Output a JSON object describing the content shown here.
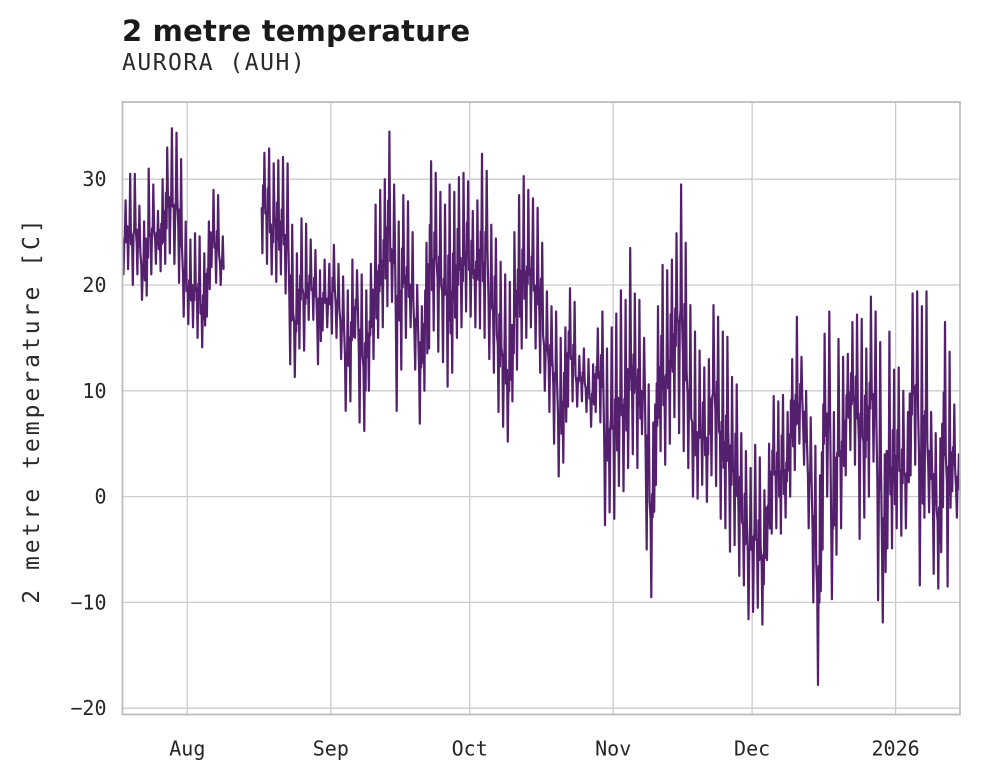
{
  "header": {
    "title": "2 metre temperature",
    "subtitle": "AURORA (AUH)"
  },
  "chart_data": {
    "type": "line",
    "title": "2 metre temperature",
    "subtitle": "AURORA (AUH)",
    "xlabel": "",
    "ylabel": "2 metre temperature [C]",
    "grid": true,
    "legend": "none",
    "ylim": [
      -20.6,
      37.3
    ],
    "xlim_days": [
      0,
      180.9
    ],
    "y_ticks": [
      {
        "label": "30",
        "value": 30
      },
      {
        "label": "20",
        "value": 20
      },
      {
        "label": "10",
        "value": 10
      },
      {
        "label": "0",
        "value": 0
      },
      {
        "label": "−10",
        "value": -10
      },
      {
        "label": "−20",
        "value": -20
      }
    ],
    "x_ticks": [
      {
        "label": "Aug",
        "day": 14
      },
      {
        "label": "Sep",
        "day": 45
      },
      {
        "label": "Oct",
        "day": 75
      },
      {
        "label": "Nov",
        "day": 106
      },
      {
        "label": "Dec",
        "day": 136
      },
      {
        "label": "2026",
        "day": 167
      }
    ],
    "colors": {
      "line": "#54206e",
      "grid": "#cccccc",
      "spine": "#bdbdbd",
      "background": "#ffffff",
      "text": "#262626",
      "title_text": "#1a1a1a"
    },
    "series": [
      {
        "name": "2 metre temperature",
        "unit": "C",
        "color": "#54206e",
        "sampling": "daily [min,max] envelope read from plot; day 0 = first plotted day (mid-July); null = data gap; month tick marks fall at x_ticks days",
        "envelope": [
          [
            21,
            28
          ],
          [
            21.5,
            30.5
          ],
          [
            20,
            30.5
          ],
          [
            21,
            27.5
          ],
          [
            18.6,
            26
          ],
          [
            19,
            31
          ],
          [
            21,
            29.5
          ],
          [
            22,
            27
          ],
          [
            21.3,
            30
          ],
          [
            22,
            33
          ],
          [
            23,
            34.8
          ],
          [
            22,
            34.4
          ],
          [
            20.2,
            31.9
          ],
          [
            17,
            26
          ],
          [
            16.3,
            24.3
          ],
          [
            16,
            24.9
          ],
          [
            15,
            24.6
          ],
          [
            14.1,
            23
          ],
          [
            17,
            26
          ],
          [
            21.7,
            29
          ],
          [
            20.2,
            28.5
          ],
          [
            20,
            24.6
          ],
          null,
          null,
          null,
          null,
          null,
          null,
          null,
          null,
          [
            23,
            32.5
          ],
          [
            22,
            32.9
          ],
          [
            21,
            31.5
          ],
          [
            20.3,
            31.8
          ],
          [
            21,
            32.1
          ],
          [
            19.2,
            31.5
          ],
          [
            12.5,
            25.7
          ],
          [
            11.3,
            23
          ],
          [
            14,
            26.3
          ],
          [
            13.8,
            25.8
          ],
          [
            16.7,
            24.3
          ],
          [
            16.7,
            23.3
          ],
          [
            12.5,
            21.4
          ],
          [
            15.7,
            22.4
          ],
          [
            16,
            22
          ],
          [
            15.4,
            23.8
          ],
          [
            15,
            22
          ],
          [
            13,
            20.8
          ],
          [
            8.1,
            19.5
          ],
          [
            9,
            22.4
          ],
          [
            15,
            21.4
          ],
          [
            7,
            21
          ],
          [
            6.2,
            19.5
          ],
          [
            10,
            22
          ],
          [
            13,
            27.6
          ],
          [
            15,
            29
          ],
          [
            16,
            30
          ],
          [
            18,
            34.5
          ],
          [
            18.4,
            29.5
          ],
          [
            8.1,
            26
          ],
          [
            12,
            28.5
          ],
          [
            15,
            27.9
          ],
          [
            16,
            25
          ],
          [
            12,
            20
          ],
          [
            6.9,
            18
          ],
          [
            10,
            24
          ],
          [
            14,
            31.7
          ],
          [
            15.7,
            30.6
          ],
          [
            13.7,
            28.8
          ],
          [
            12.7,
            27.6
          ],
          [
            10.4,
            29.5
          ],
          [
            11.7,
            28.8
          ],
          [
            15,
            30.2
          ],
          [
            16,
            30.6
          ],
          [
            17.5,
            29.8
          ],
          [
            17,
            27
          ],
          [
            16,
            28
          ],
          [
            15.9,
            32.4
          ],
          [
            15,
            30.8
          ],
          [
            13,
            25.7
          ],
          [
            11.7,
            24.4
          ],
          [
            8,
            22.2
          ],
          [
            6.6,
            21
          ],
          [
            5.2,
            20.3
          ],
          [
            9,
            25
          ],
          [
            12,
            28.5
          ],
          [
            14,
            30.3
          ],
          [
            15,
            29
          ],
          [
            16,
            28.2
          ],
          [
            14,
            27.3
          ],
          [
            11.7,
            24
          ],
          [
            10,
            19.4
          ],
          [
            8,
            18
          ],
          [
            5,
            17.5
          ],
          [
            1.9,
            15
          ],
          [
            3.2,
            16
          ],
          [
            8.5,
            19.7
          ],
          [
            9,
            18.4
          ],
          [
            8.5,
            13.3
          ],
          [
            9,
            14
          ],
          [
            8,
            13
          ],
          [
            6.6,
            12.5
          ],
          [
            8,
            15.9
          ],
          [
            7,
            17.5
          ],
          [
            -2.7,
            14
          ],
          [
            -1.5,
            16
          ],
          [
            -2.1,
            17.3
          ],
          [
            1,
            19.5
          ],
          [
            0.5,
            18.6
          ],
          [
            2.7,
            23.5
          ],
          [
            4,
            19.2
          ],
          [
            2.7,
            18.6
          ],
          [
            5.9,
            15
          ],
          [
            -5,
            10.6
          ],
          [
            -9.5,
            7
          ],
          [
            1.1,
            18
          ],
          [
            4.3,
            21.9
          ],
          [
            3,
            21.4
          ],
          [
            5,
            22.4
          ],
          [
            7.5,
            24.9
          ],
          [
            6,
            29.5
          ],
          [
            4.3,
            24
          ],
          [
            2.7,
            18.1
          ],
          [
            0,
            15.6
          ],
          [
            -0.2,
            13.8
          ],
          [
            1.1,
            12.2
          ],
          [
            -0.5,
            13
          ],
          [
            2,
            18.1
          ],
          [
            1,
            17
          ],
          [
            -2.1,
            15.6
          ],
          [
            -3,
            15.1
          ],
          [
            -5.2,
            11.3
          ],
          [
            -4.6,
            10.6
          ],
          [
            -7.5,
            6
          ],
          [
            -8.4,
            4.3
          ],
          [
            -11.6,
            2.7
          ],
          [
            -10.9,
            4.9
          ],
          [
            -10.5,
            3.7
          ],
          [
            -12.1,
            0.6
          ],
          [
            -6,
            5
          ],
          [
            -3.5,
            9.5
          ],
          [
            -3,
            9
          ],
          [
            -3.5,
            9.6
          ],
          [
            -2,
            8
          ],
          [
            0,
            13
          ],
          [
            2.5,
            17
          ],
          [
            5,
            13.2
          ],
          [
            3,
            10
          ],
          [
            -3,
            7.5
          ],
          [
            -10,
            4.8
          ],
          [
            -17.8,
            2
          ],
          [
            -5,
            15.4
          ],
          [
            0,
            17.5
          ],
          [
            -9.7,
            8
          ],
          [
            -5.5,
            14.9
          ],
          [
            -3,
            13.2
          ],
          [
            2,
            13.5
          ],
          [
            4.4,
            16.5
          ],
          [
            3,
            17.2
          ],
          [
            -4,
            16.8
          ],
          [
            -2,
            14
          ],
          [
            0,
            18.9
          ],
          [
            3.3,
            17.5
          ],
          [
            -9.8,
            14.6
          ],
          [
            -11.9,
            4
          ],
          [
            -4.9,
            15.6
          ],
          [
            -4.9,
            12
          ],
          [
            -3,
            12.2
          ],
          [
            -3.7,
            10
          ],
          [
            -3,
            8
          ],
          [
            2,
            19.2
          ],
          [
            3,
            19.4
          ],
          [
            -8.4,
            18
          ],
          [
            -2,
            19.4
          ],
          [
            -1.5,
            8
          ],
          [
            -7.3,
            6
          ],
          [
            -8.7,
            5.5
          ],
          [
            -1,
            16.5
          ],
          [
            -8.5,
            13.7
          ],
          [
            0.5,
            8.7
          ],
          [
            -2,
            4
          ]
        ]
      }
    ]
  }
}
